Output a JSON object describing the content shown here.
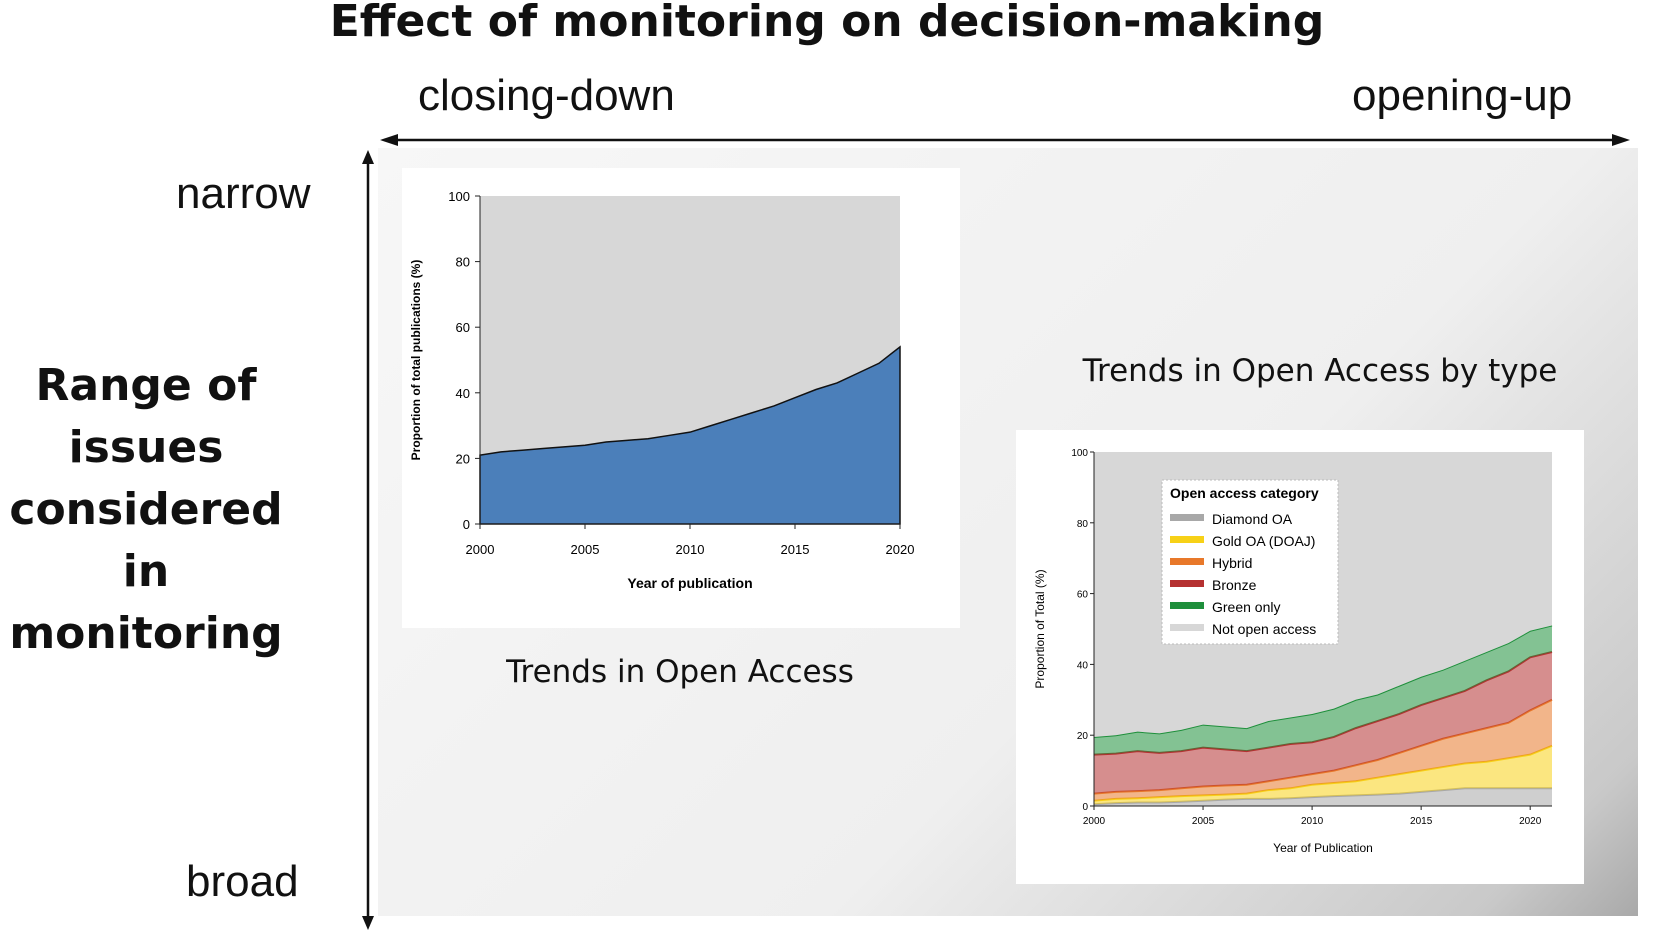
{
  "title": "Effect of monitoring on decision-making",
  "horizontal_axis": {
    "left_label": "closing-down",
    "right_label": "opening-up"
  },
  "vertical_axis": {
    "top_label": "narrow",
    "bottom_label": "broad",
    "title": "Range of issues considered in monitoring"
  },
  "credit": "",
  "colors": {
    "oa_blue": "#4b7fba",
    "oa_grey_bg": "#d7d7d7"
  },
  "chart_data": [
    {
      "type": "area",
      "caption": "Trends in Open Access",
      "xlabel": "Year of publication",
      "ylabel": "Proportion of total publications (%)",
      "xlim": [
        2000,
        2020
      ],
      "ylim": [
        0,
        100
      ],
      "x_ticks": [
        2000,
        2005,
        2010,
        2015,
        2020
      ],
      "y_ticks": [
        0,
        20,
        40,
        60,
        80,
        100
      ],
      "x": [
        2000,
        2001,
        2002,
        2003,
        2004,
        2005,
        2006,
        2007,
        2008,
        2009,
        2010,
        2011,
        2012,
        2013,
        2014,
        2015,
        2016,
        2017,
        2018,
        2019,
        2020
      ],
      "series": [
        {
          "values": [
            21,
            22,
            22.5,
            23,
            23.5,
            24,
            25,
            25.5,
            26,
            27,
            28,
            30,
            32,
            34,
            36,
            38.5,
            41,
            43,
            46,
            49,
            54
          ],
          "color": "#4b7fba"
        }
      ],
      "background_color": "#d7d7d7"
    },
    {
      "type": "area",
      "stacked": true,
      "caption": "Trends in Open Access by type",
      "xlabel": "Year of Publication",
      "ylabel": "Proportion of Total (%)",
      "xlim": [
        2000,
        2021
      ],
      "ylim": [
        0,
        100
      ],
      "x_ticks": [
        2000,
        2005,
        2010,
        2015,
        2020
      ],
      "y_ticks": [
        0,
        20,
        40,
        60,
        80,
        100
      ],
      "legend_title": "Open access category",
      "legend_position": "top-left",
      "x": [
        2000,
        2001,
        2002,
        2003,
        2004,
        2005,
        2006,
        2007,
        2008,
        2009,
        2010,
        2011,
        2012,
        2013,
        2014,
        2015,
        2016,
        2017,
        2018,
        2019,
        2020,
        2021
      ],
      "series": [
        {
          "name": "Diamond OA",
          "color": "#a8a8a8",
          "stack_top": [
            0.5,
            0.8,
            1,
            1,
            1.2,
            1.5,
            1.8,
            2,
            2,
            2.2,
            2.5,
            2.8,
            3,
            3.2,
            3.5,
            4,
            4.5,
            5,
            5,
            5,
            5,
            5
          ]
        },
        {
          "name": "Gold OA (DOAJ)",
          "color": "#f7d117",
          "stack_top": [
            1.5,
            2,
            2.2,
            2.5,
            2.8,
            3,
            3.2,
            3.5,
            4.5,
            5,
            6,
            6.5,
            7,
            8,
            9,
            10,
            11,
            12,
            12.5,
            13.5,
            14.5,
            17
          ]
        },
        {
          "name": "Hybrid",
          "color": "#e8782a",
          "stack_top": [
            3.5,
            4,
            4.2,
            4.5,
            5,
            5.5,
            5.8,
            6,
            7,
            8,
            9,
            10,
            11.5,
            13,
            15,
            17,
            19,
            20.5,
            22,
            23.5,
            27,
            30
          ]
        },
        {
          "name": "Bronze",
          "color": "#b53131",
          "stack_top": [
            14.5,
            14.8,
            15.5,
            15,
            15.5,
            16.5,
            16,
            15.5,
            16.5,
            17.5,
            18,
            19.5,
            22,
            24,
            26,
            28.5,
            30.5,
            32.5,
            35.5,
            38,
            42,
            43.5
          ]
        },
        {
          "name": "Green only",
          "color": "#1e8f3b",
          "stack_top": [
            19.5,
            20,
            21,
            20.5,
            21.5,
            23,
            22.5,
            22,
            24,
            25,
            26,
            27.5,
            30,
            31.5,
            34,
            36.5,
            38.5,
            41,
            43.5,
            46,
            49.5,
            51
          ]
        },
        {
          "name": "Not open access",
          "color": "#d7d7d7",
          "stack_top": [
            100,
            100,
            100,
            100,
            100,
            100,
            100,
            100,
            100,
            100,
            100,
            100,
            100,
            100,
            100,
            100,
            100,
            100,
            100,
            100,
            100,
            100
          ]
        }
      ]
    }
  ]
}
